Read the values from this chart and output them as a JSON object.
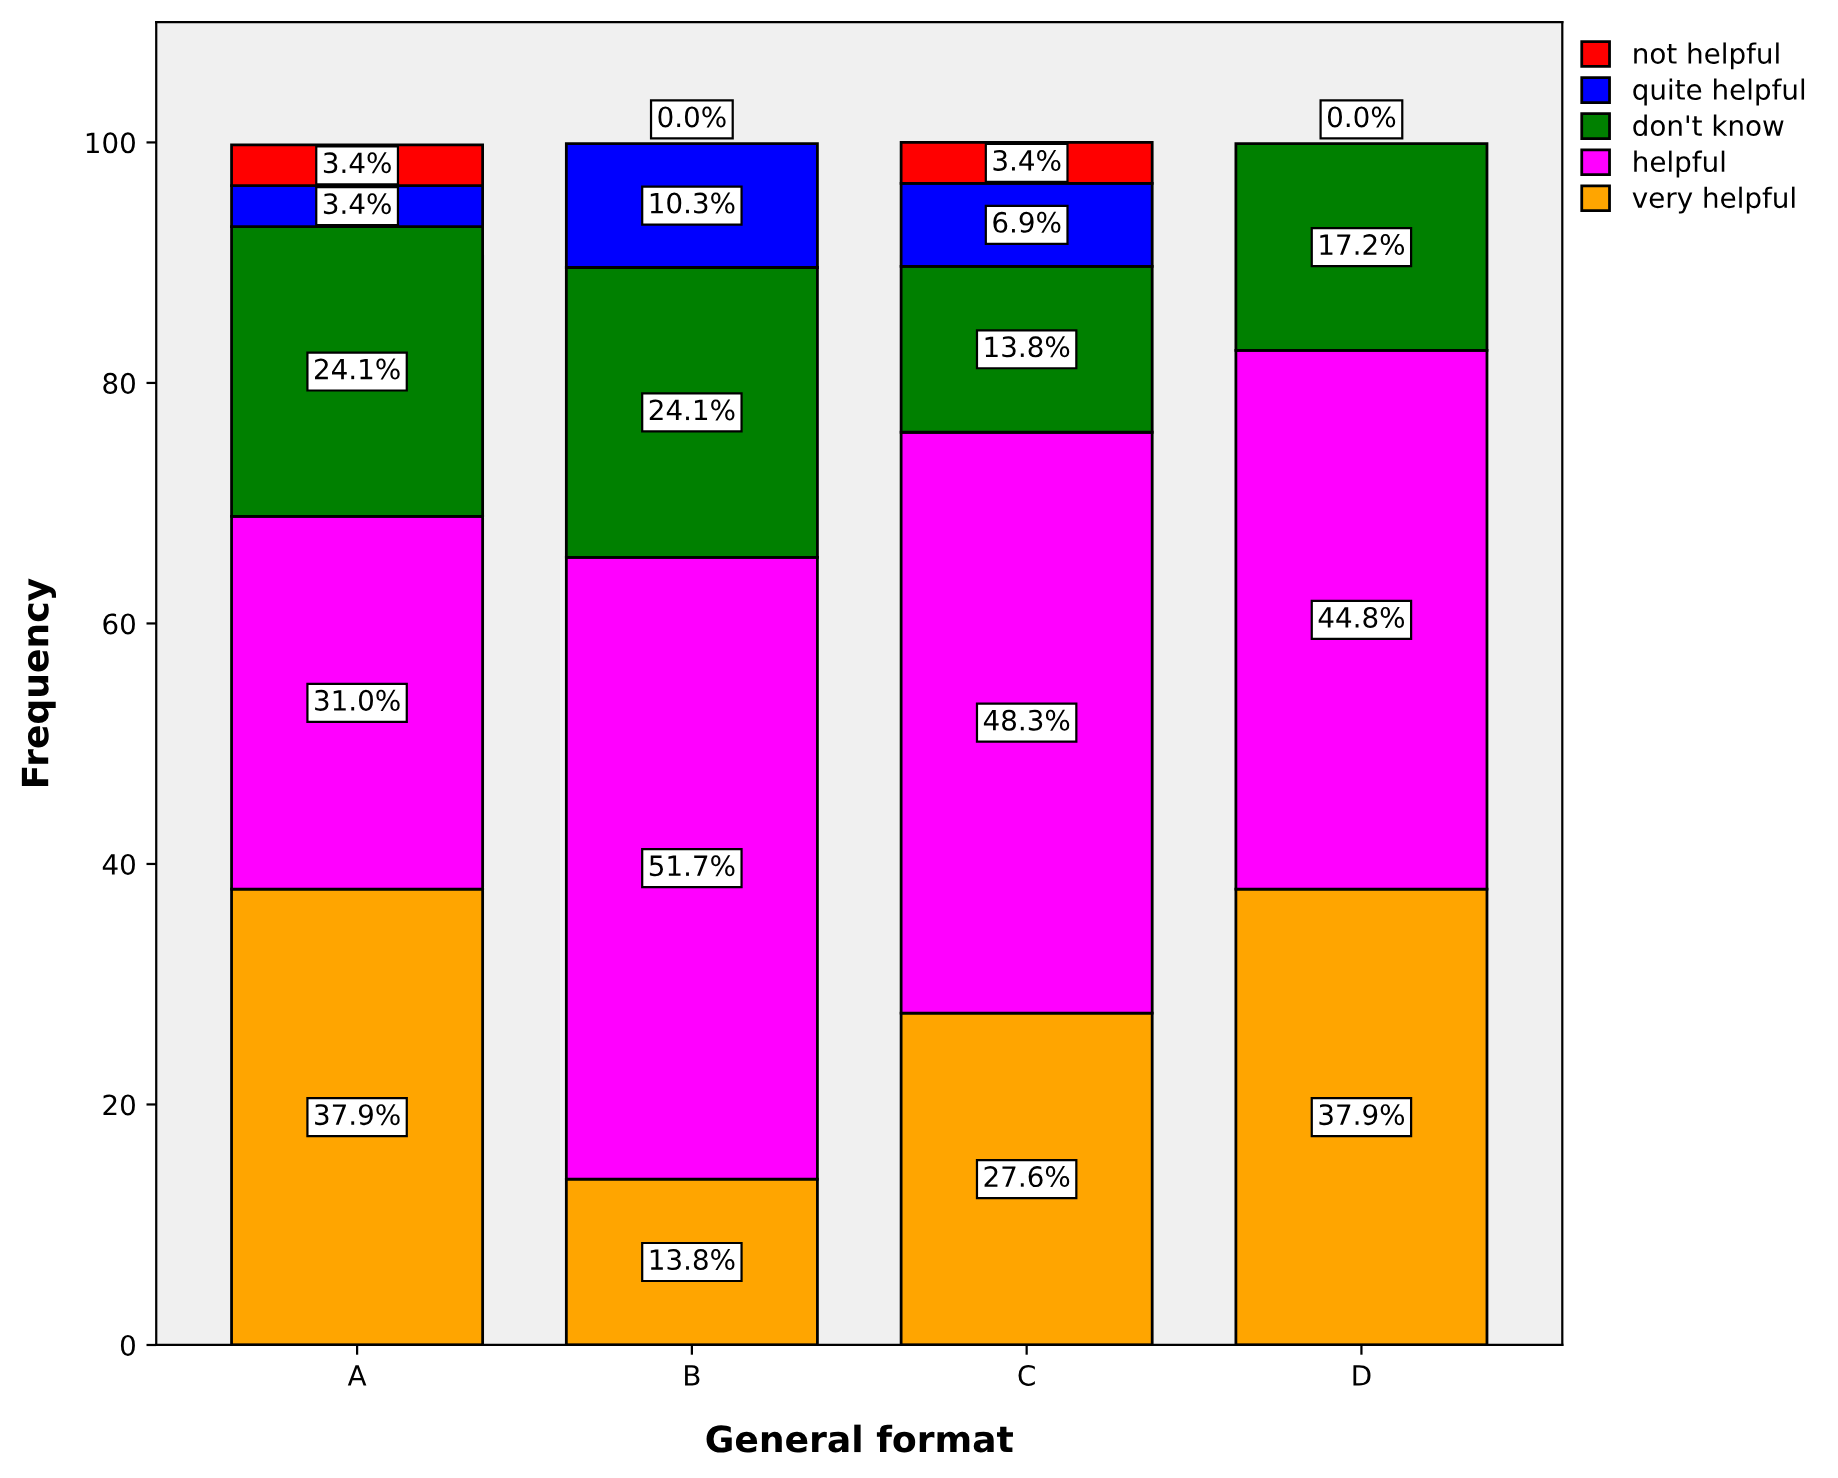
{
  "chart_data": {
    "type": "bar",
    "stacked": true,
    "xlabel": "General format",
    "ylabel": "Frequency",
    "categories": [
      "A",
      "B",
      "C",
      "D"
    ],
    "series": [
      {
        "name": "very helpful",
        "color": "#ffa500",
        "values": [
          37.9,
          13.8,
          27.6,
          37.9
        ],
        "value_labels": [
          "37.9%",
          "13.8%",
          "27.6%",
          "37.9%"
        ]
      },
      {
        "name": "helpful",
        "color": "#ff00ff",
        "values": [
          31.0,
          51.7,
          48.3,
          44.8
        ],
        "value_labels": [
          "31.0%",
          "51.7%",
          "48.3%",
          "44.8%"
        ]
      },
      {
        "name": "don't know",
        "color": "#008000",
        "values": [
          24.1,
          24.1,
          13.8,
          17.2
        ],
        "value_labels": [
          "24.1%",
          "24.1%",
          "13.8%",
          "17.2%"
        ]
      },
      {
        "name": "quite helpful",
        "color": "#0000ff",
        "values": [
          3.4,
          10.3,
          6.9,
          0.0
        ],
        "value_labels": [
          "3.4%",
          "10.3%",
          "6.9%",
          null
        ]
      },
      {
        "name": "not helpful",
        "color": "#ff0000",
        "values": [
          3.4,
          0.0,
          3.4,
          0.0
        ],
        "value_labels": [
          "3.4%",
          "0.0%",
          "3.4%",
          "0.0%"
        ]
      }
    ],
    "ylim": [
      0,
      110
    ],
    "yticks": [
      0,
      20,
      40,
      60,
      80,
      100
    ],
    "grid": false,
    "legend": "top right"
  }
}
